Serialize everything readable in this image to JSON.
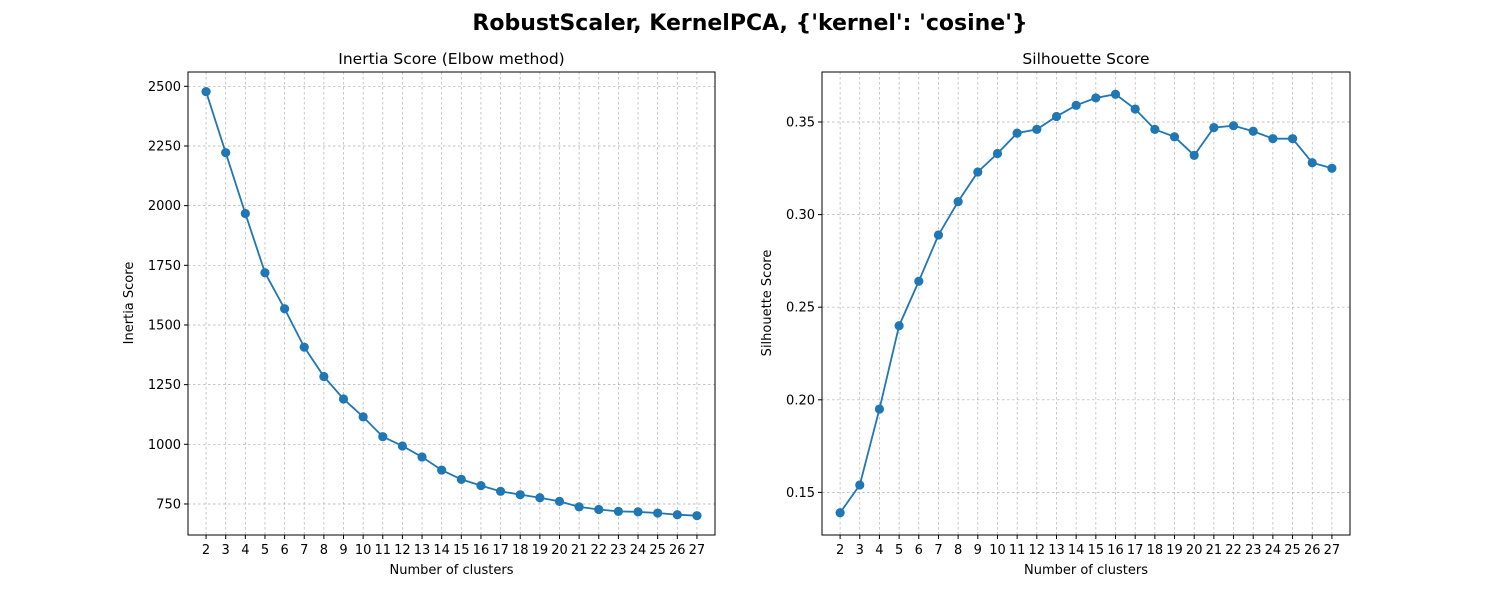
{
  "suptitle": "RobustScaler, KernelPCA, {'kernel': 'cosine'}",
  "colors": {
    "series": "#1f77b4"
  },
  "chart_data": [
    {
      "type": "line",
      "title": "Inertia Score (Elbow method)",
      "xlabel": "Number of clusters",
      "ylabel": "Inertia Score",
      "x": [
        2,
        3,
        4,
        5,
        6,
        7,
        8,
        9,
        10,
        11,
        12,
        13,
        14,
        15,
        16,
        17,
        18,
        19,
        20,
        21,
        22,
        23,
        24,
        25,
        26,
        27
      ],
      "values": [
        2478,
        2222,
        1967,
        1719,
        1568,
        1407,
        1284,
        1190,
        1115,
        1032,
        993,
        947,
        892,
        853,
        827,
        803,
        789,
        776,
        761,
        738,
        727,
        719,
        717,
        712,
        705,
        701
      ],
      "ylim": [
        620,
        2560
      ],
      "yticks": [
        750,
        1000,
        1250,
        1500,
        1750,
        2000,
        2250,
        2500
      ],
      "ytick_labels": [
        "750",
        "1000",
        "1250",
        "1500",
        "1750",
        "2000",
        "2250",
        "2500"
      ],
      "marker": "circle",
      "grid": true
    },
    {
      "type": "line",
      "title": "Silhouette Score",
      "xlabel": "Number of clusters",
      "ylabel": "Silhouette Score",
      "x": [
        2,
        3,
        4,
        5,
        6,
        7,
        8,
        9,
        10,
        11,
        12,
        13,
        14,
        15,
        16,
        17,
        18,
        19,
        20,
        21,
        22,
        23,
        24,
        25,
        26,
        27
      ],
      "values": [
        0.139,
        0.154,
        0.195,
        0.24,
        0.264,
        0.289,
        0.307,
        0.323,
        0.333,
        0.344,
        0.346,
        0.353,
        0.359,
        0.363,
        0.365,
        0.357,
        0.346,
        0.342,
        0.332,
        0.347,
        0.348,
        0.345,
        0.341,
        0.341,
        0.328,
        0.325
      ],
      "ylim": [
        0.127,
        0.377
      ],
      "yticks": [
        0.15,
        0.2,
        0.25,
        0.3,
        0.35
      ],
      "ytick_labels": [
        "0.15",
        "0.20",
        "0.25",
        "0.30",
        "0.35"
      ],
      "marker": "circle",
      "grid": true
    }
  ]
}
